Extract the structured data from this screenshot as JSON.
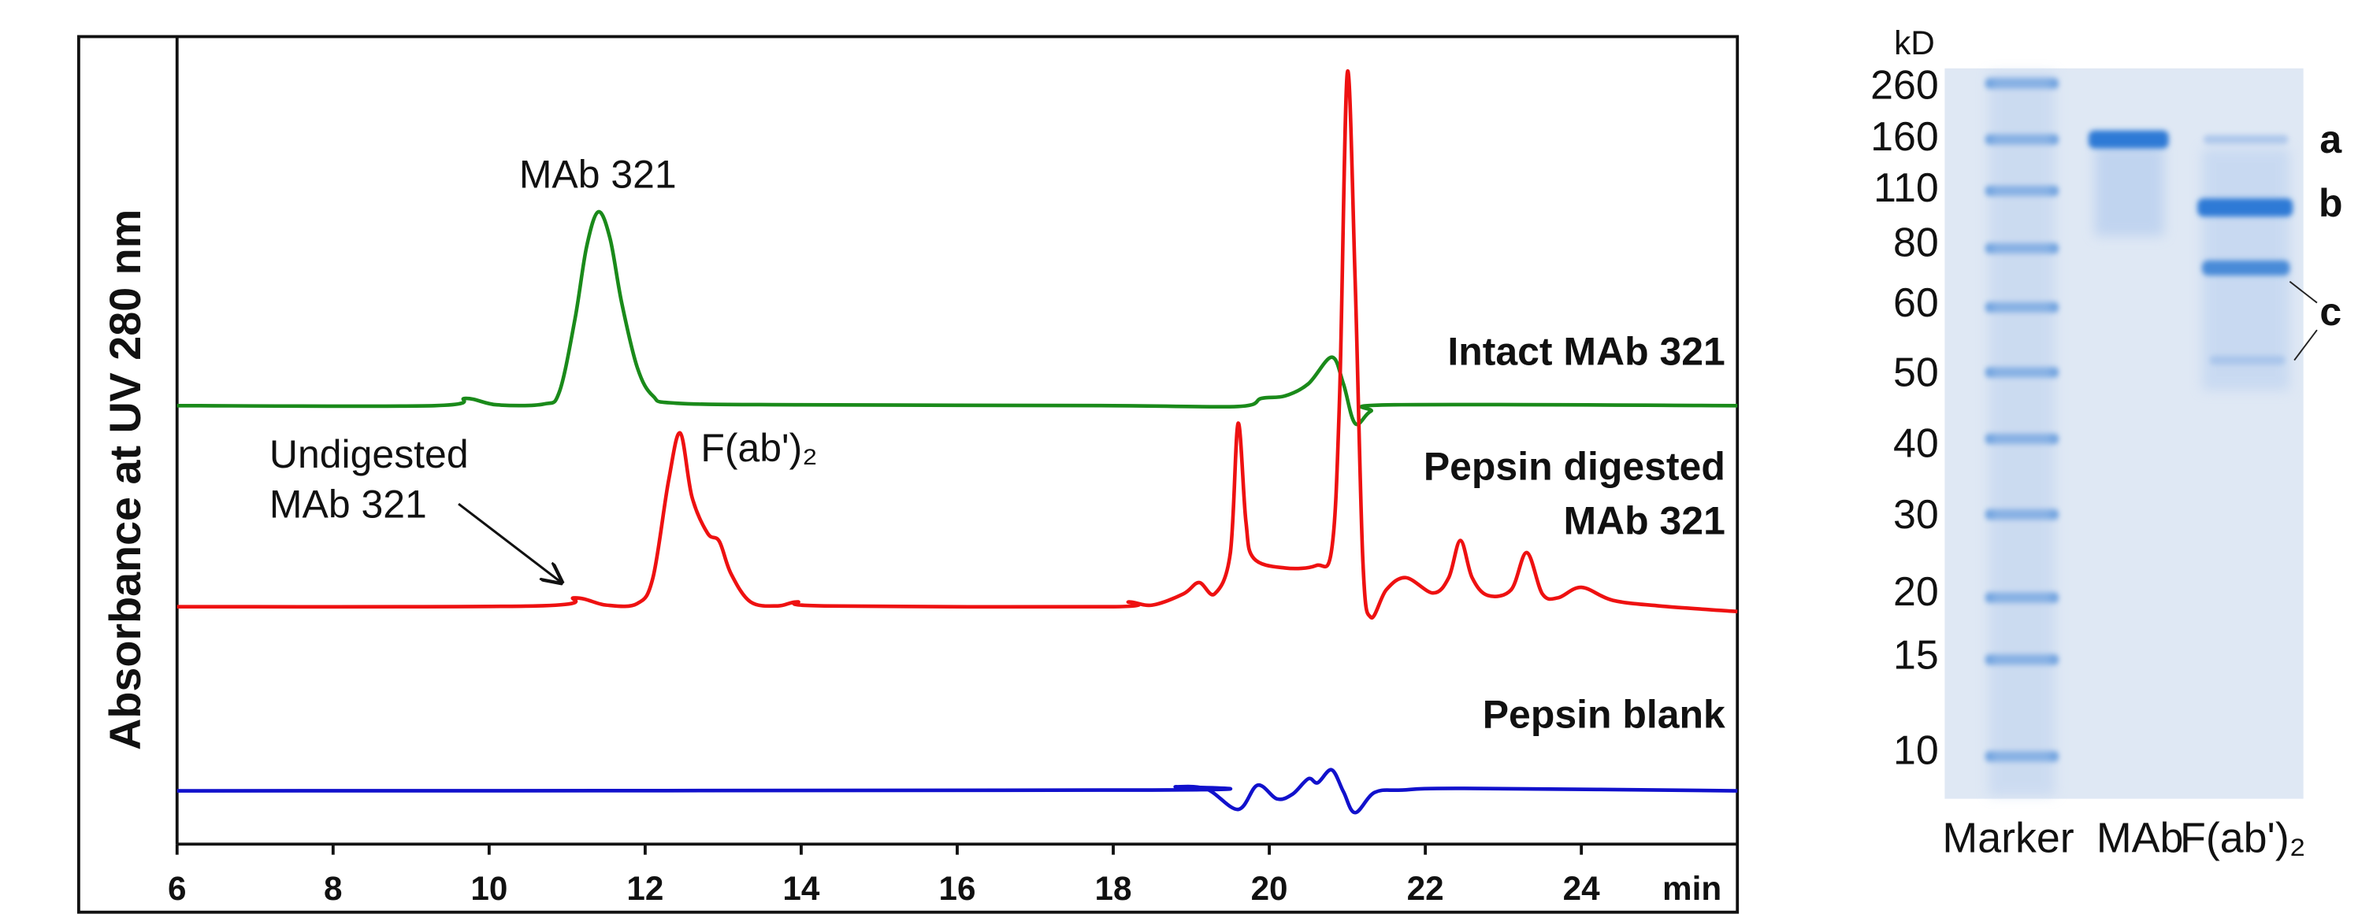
{
  "chart_data": [
    {
      "type": "line",
      "ylabel": "Absorbance at UV 280 nm",
      "xlabel": "min",
      "xlim": [
        6,
        26
      ],
      "xticks": [
        6,
        8,
        10,
        12,
        14,
        16,
        18,
        20,
        22,
        24
      ],
      "ylim": [
        0,
        100
      ],
      "annotations": [
        "MAb 321",
        "Undigested MAb 321",
        "F(ab')₂"
      ],
      "series": [
        {
          "name": "Intact MAb 321",
          "color": "#1a8a1a",
          "x": [
            6,
            9.3,
            9.7,
            10.1,
            10.7,
            10.9,
            11.1,
            11.25,
            11.4,
            11.55,
            11.7,
            11.9,
            12.1,
            12.4,
            14,
            18,
            19.6,
            19.9,
            20.2,
            20.5,
            20.8,
            20.95,
            21.1,
            21.3,
            21.6,
            26
          ],
          "values": [
            54.3,
            54.3,
            55.2,
            54.4,
            54.5,
            56,
            65,
            74,
            78.3,
            75,
            67,
            59,
            55.5,
            54.6,
            54.4,
            54.3,
            54.2,
            55.2,
            55.5,
            57,
            60.3,
            57,
            52.1,
            53.6,
            54.4,
            54.3
          ]
        },
        {
          "name": "Pepsin digested MAb 321",
          "color": "#ee1111",
          "x": [
            6,
            10.6,
            11.1,
            11.5,
            11.9,
            12.1,
            12.3,
            12.45,
            12.6,
            12.8,
            12.95,
            13.1,
            13.35,
            13.7,
            13.95,
            14.3,
            18,
            18.2,
            18.5,
            18.9,
            19.1,
            19.3,
            19.5,
            19.6,
            19.7,
            19.8,
            20.2,
            20.6,
            20.8,
            20.9,
            21.0,
            21.1,
            21.2,
            21.3,
            21.5,
            21.75,
            22.1,
            22.3,
            22.45,
            22.6,
            22.8,
            23.1,
            23.3,
            23.5,
            23.7,
            24,
            24.4,
            25,
            26
          ],
          "values": [
            29.4,
            29.5,
            30.5,
            29.6,
            29.8,
            33,
            45,
            50.9,
            43,
            38.5,
            37.5,
            33.5,
            30,
            29.5,
            30.0,
            29.5,
            29.4,
            30.0,
            29.6,
            31,
            32.4,
            31,
            36,
            52.1,
            40,
            35.4,
            34.2,
            34.5,
            36.5,
            55,
            95.5,
            70,
            35,
            28.1,
            31.5,
            33.0,
            31.1,
            33,
            37.6,
            33,
            30.8,
            31.5,
            36.1,
            31,
            30.5,
            31.8,
            30.2,
            29.5,
            28.8
          ]
        },
        {
          "name": "Pepsin blank",
          "color": "#1111cc",
          "x": [
            6,
            18.5,
            18.8,
            19.2,
            19.6,
            19.85,
            20.1,
            20.3,
            20.5,
            20.62,
            20.8,
            20.95,
            21.1,
            21.35,
            21.7,
            22.5,
            26
          ],
          "values": [
            6.6,
            6.7,
            7.1,
            6.8,
            4.3,
            7.3,
            5.6,
            6.2,
            8.1,
            7.6,
            9.2,
            6.5,
            3.9,
            6.4,
            6.7,
            6.9,
            6.6
          ]
        }
      ]
    },
    {
      "type": "gel",
      "unit_label": "kD",
      "markers": [
        260,
        160,
        110,
        80,
        60,
        50,
        40,
        30,
        20,
        15,
        10
      ],
      "lanes": [
        "Marker",
        "MAb",
        "F(ab')₂"
      ],
      "band_labels": [
        "a",
        "b",
        "c"
      ]
    }
  ]
}
